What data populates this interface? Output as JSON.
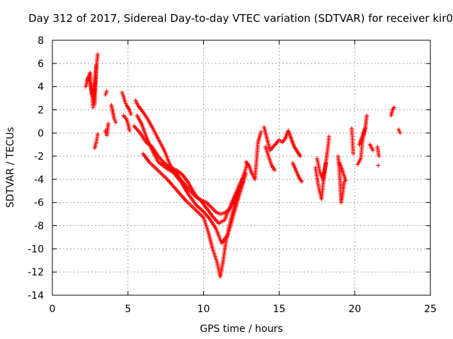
{
  "chart_data": {
    "type": "scatter",
    "title": "Day 312 of 2017, Sidereal Day-to-day VTEC variation (SDTVAR) for receiver kir0",
    "xlabel": "GPS time / hours",
    "ylabel": "SDTVAR / TECUs",
    "xlim": [
      0,
      25
    ],
    "ylim": [
      -14,
      8
    ],
    "xticks": [
      0,
      5,
      10,
      15,
      20,
      25
    ],
    "yticks": [
      -14,
      -12,
      -10,
      -8,
      -6,
      -4,
      -2,
      0,
      2,
      4,
      6,
      8
    ],
    "xtick_labels": [
      "0",
      "5",
      "10",
      "15",
      "20",
      "25"
    ],
    "ytick_labels": [
      "-14",
      "-12",
      "-10",
      "-8",
      "-6",
      "-4",
      "-2",
      "0",
      "2",
      "4",
      "6",
      "8"
    ],
    "grid": true,
    "marker": "+",
    "color": "#ff0000",
    "series": [
      {
        "name": "SDTVAR",
        "segments": [
          {
            "x": [
              2.2,
              2.4,
              2.6,
              2.8,
              2.9,
              3.0
            ],
            "y": [
              4.0,
              4.8,
              3.5,
              2.5,
              5.5,
              6.8
            ]
          },
          {
            "x": [
              2.3,
              2.5,
              2.7,
              2.9
            ],
            "y": [
              4.5,
              5.2,
              2.2,
              5.8
            ]
          },
          {
            "x": [
              2.8,
              2.9,
              3.0
            ],
            "y": [
              -1.3,
              -0.8,
              -0.1
            ]
          },
          {
            "x": [
              3.5,
              3.6
            ],
            "y": [
              3.3,
              3.6
            ]
          },
          {
            "x": [
              3.5,
              3.6,
              3.7
            ],
            "y": [
              0.2,
              -0.2,
              0.8
            ]
          },
          {
            "x": [
              3.9,
              4.0,
              4.1,
              4.2
            ],
            "y": [
              2.4,
              1.8,
              1.2,
              0.9
            ]
          },
          {
            "x": [
              4.6,
              4.7,
              4.8,
              4.9,
              5.0,
              5.1,
              5.2
            ],
            "y": [
              3.5,
              3.2,
              2.7,
              2.4,
              2.2,
              2.0,
              1.6
            ]
          },
          {
            "x": [
              4.7,
              4.9,
              5.0,
              5.1
            ],
            "y": [
              1.5,
              1.2,
              0.8,
              0.2
            ]
          },
          {
            "x": [
              5.5,
              5.7,
              6.0,
              6.3,
              6.6,
              7.0,
              7.4,
              7.8,
              8.2,
              8.6,
              9.0,
              9.4,
              9.8,
              10.2,
              10.6,
              11.0,
              11.4,
              11.8,
              12.2,
              12.6,
              12.9
            ],
            "y": [
              2.8,
              2.3,
              1.8,
              1.2,
              0.5,
              -0.5,
              -1.5,
              -2.8,
              -3.5,
              -4.2,
              -4.8,
              -5.4,
              -5.8,
              -6.5,
              -7.2,
              -7.8,
              -7.5,
              -6.2,
              -5.0,
              -3.8,
              -2.6
            ]
          },
          {
            "x": [
              5.6,
              5.9,
              6.2,
              6.6,
              7.0,
              7.5,
              8.0,
              8.5,
              9.0,
              9.5,
              10.0,
              10.4,
              10.8,
              11.2,
              11.6,
              12.0,
              12.4,
              12.8
            ],
            "y": [
              1.5,
              0.8,
              -0.3,
              -1.5,
              -2.5,
              -3.0,
              -3.4,
              -4.2,
              -5.3,
              -6.2,
              -6.8,
              -7.4,
              -8.2,
              -9.5,
              -8.8,
              -7.0,
              -5.2,
              -3.5
            ]
          },
          {
            "x": [
              6.0,
              6.4,
              6.8,
              7.2,
              7.6,
              8.0,
              8.4,
              8.8,
              9.2,
              9.6,
              10.0,
              10.3,
              10.6,
              10.9,
              11.1,
              11.3,
              11.5,
              11.8,
              12.1,
              12.4
            ],
            "y": [
              -1.8,
              -2.5,
              -3.0,
              -3.5,
              -4.0,
              -4.6,
              -5.2,
              -5.8,
              -6.3,
              -6.8,
              -7.3,
              -8.5,
              -10.0,
              -11.2,
              -12.4,
              -11.0,
              -9.2,
              -7.5,
              -6.0,
              -4.6
            ]
          },
          {
            "x": [
              5.4,
              5.8,
              6.2,
              6.6,
              7.0,
              7.4,
              7.8,
              8.2,
              8.6,
              9.0,
              9.3,
              9.6,
              9.9,
              10.2,
              10.5,
              10.8,
              11.1,
              11.4,
              11.7,
              12.0,
              12.3,
              12.6
            ],
            "y": [
              0.6,
              0.0,
              -0.8,
              -1.2,
              -2.0,
              -2.6,
              -3.0,
              -3.2,
              -3.6,
              -4.3,
              -5.0,
              -5.6,
              -5.8,
              -6.0,
              -6.4,
              -6.8,
              -7.0,
              -6.9,
              -6.6,
              -6.0,
              -5.2,
              -4.2
            ]
          },
          {
            "x": [
              12.8,
              13.0,
              13.2,
              13.4,
              13.6,
              13.8
            ],
            "y": [
              -2.5,
              -2.8,
              -3.5,
              -4.0,
              -0.8,
              0.1
            ]
          },
          {
            "x": [
              14.0,
              14.2,
              14.4,
              14.6,
              14.8,
              15.0,
              15.2,
              15.4,
              15.6,
              15.8,
              16.0,
              16.2,
              16.4
            ],
            "y": [
              0.5,
              -0.5,
              -1.5,
              -1.2,
              -0.9,
              -0.6,
              -0.8,
              -0.5,
              0.2,
              -0.5,
              -1.2,
              -1.6,
              -2.0
            ]
          },
          {
            "x": [
              14.1,
              14.3,
              14.5,
              14.7
            ],
            "y": [
              -1.2,
              -2.0,
              -2.8,
              -3.2
            ]
          },
          {
            "x": [
              15.9,
              16.1,
              16.3,
              16.5
            ],
            "y": [
              -2.6,
              -3.2,
              -3.8,
              -4.2
            ]
          },
          {
            "x": [
              17.4,
              17.6,
              17.8,
              18.0,
              18.2,
              18.3
            ],
            "y": [
              -3.0,
              -4.6,
              -5.7,
              -3.3,
              -1.5,
              -0.3
            ]
          },
          {
            "x": [
              17.5,
              17.7,
              17.9,
              18.1
            ],
            "y": [
              -2.2,
              -3.4,
              -4.0,
              -2.6
            ]
          },
          {
            "x": [
              18.9,
              19.0,
              19.1,
              19.2,
              19.3
            ],
            "y": [
              -2.0,
              -3.5,
              -6.0,
              -5.2,
              -4.2
            ]
          },
          {
            "x": [
              19.0,
              19.2,
              19.4
            ],
            "y": [
              -2.6,
              -3.3,
              -4.1
            ]
          },
          {
            "x": [
              19.8,
              19.9
            ],
            "y": [
              0.4,
              -1.8
            ]
          },
          {
            "x": [
              20.2,
              20.4,
              20.5,
              20.7,
              20.8
            ],
            "y": [
              -2.7,
              -2.2,
              -0.8,
              0.5,
              1.5
            ]
          },
          {
            "x": [
              20.3,
              20.5,
              20.7
            ],
            "y": [
              -1.0,
              -0.3,
              0.4
            ]
          },
          {
            "x": [
              21.0,
              21.2
            ],
            "y": [
              -1.0,
              -1.5
            ]
          },
          {
            "x": [
              21.5,
              21.6
            ],
            "y": [
              -1.2,
              -2.0
            ]
          },
          {
            "x": [
              21.55
            ],
            "y": [
              -2.8
            ]
          },
          {
            "x": [
              22.4,
              22.5,
              22.6
            ],
            "y": [
              1.5,
              2.0,
              2.2
            ]
          },
          {
            "x": [
              22.9,
              23.0
            ],
            "y": [
              0.3,
              0.0
            ]
          }
        ]
      }
    ]
  }
}
